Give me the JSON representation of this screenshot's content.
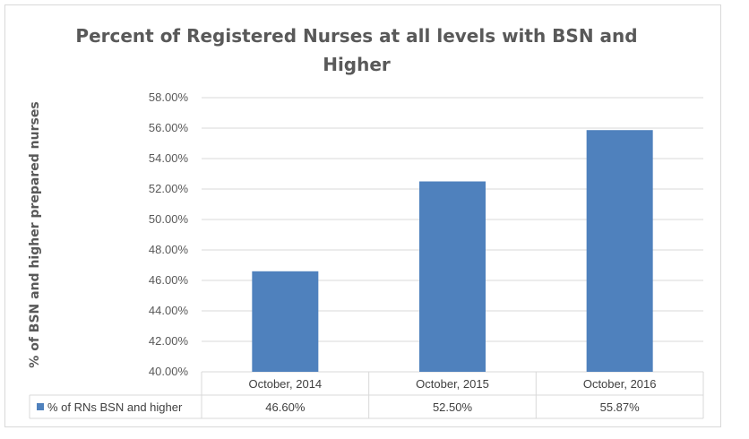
{
  "chart_data": {
    "type": "bar",
    "title": "Percent of Registered Nurses at all levels with BSN and Higher",
    "ylabel": "% of BSN and higher prepared nurses",
    "xlabel": "",
    "categories": [
      "October, 2014",
      "October, 2015",
      "October, 2016"
    ],
    "series": [
      {
        "name": "% of RNs BSN and higher",
        "values": [
          46.6,
          52.5,
          55.87
        ],
        "labels": [
          "46.60%",
          "52.50%",
          "55.87%"
        ],
        "color": "#4f81bd"
      }
    ],
    "ylim": [
      40,
      58
    ],
    "yticks": [
      40,
      42,
      44,
      46,
      48,
      50,
      52,
      54,
      56,
      58
    ],
    "ytick_labels": [
      "40.00%",
      "42.00%",
      "44.00%",
      "46.00%",
      "48.00%",
      "50.00%",
      "52.00%",
      "54.00%",
      "56.00%",
      "58.00%"
    ],
    "grid": true,
    "data_table": true,
    "gridline_color": "#d9d9d9"
  }
}
